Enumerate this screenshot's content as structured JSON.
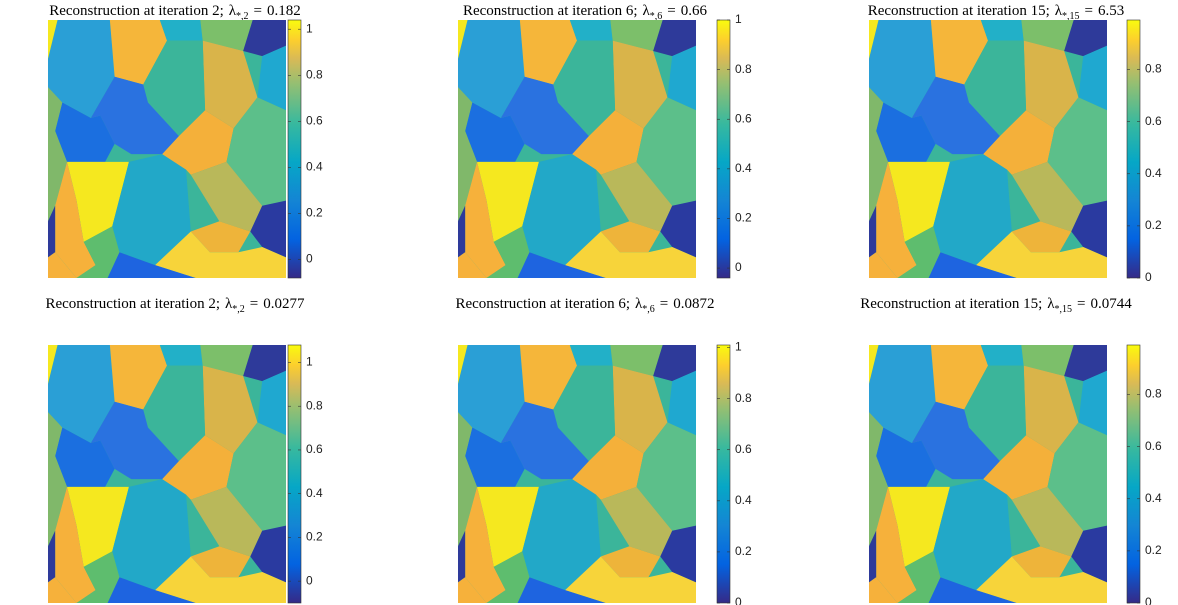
{
  "chart_data": [
    {
      "type": "heatmap",
      "title": "Reconstruction at iteration 2;",
      "lambda": {
        "symbol": "λ",
        "subscript": "*,2",
        "relation": "=",
        "value": 0.182
      },
      "colormap": "parula",
      "clim": [
        -0.08,
        1.04
      ],
      "cticks": [
        0,
        0.2,
        0.4,
        0.6,
        0.8,
        1
      ]
    },
    {
      "type": "heatmap",
      "title": "Reconstruction at iteration 6;",
      "lambda": {
        "symbol": "λ",
        "subscript": "*,6",
        "relation": "=",
        "value": 0.66
      },
      "colormap": "parula",
      "clim": [
        -0.04,
        1
      ],
      "cticks": [
        0,
        0.2,
        0.4,
        0.6,
        0.8,
        1
      ]
    },
    {
      "type": "heatmap",
      "title": "Reconstruction at iteration 15;",
      "lambda": {
        "symbol": "λ",
        "subscript": "*,15",
        "relation": "=",
        "value": 6.53
      },
      "colormap": "parula",
      "clim": [
        0,
        0.99
      ],
      "cticks": [
        0,
        0.2,
        0.4,
        0.6,
        0.8
      ]
    },
    {
      "type": "heatmap",
      "title": "Reconstruction at iteration 2;",
      "lambda": {
        "symbol": "λ",
        "subscript": "*,2",
        "relation": "=",
        "value": 0.0277
      },
      "colormap": "parula",
      "clim": [
        -0.1,
        1.08
      ],
      "cticks": [
        0,
        0.2,
        0.4,
        0.6,
        0.8,
        1
      ]
    },
    {
      "type": "heatmap",
      "title": "Reconstruction at iteration 6;",
      "lambda": {
        "symbol": "λ",
        "subscript": "*,6",
        "relation": "=",
        "value": 0.0872
      },
      "colormap": "parula",
      "clim": [
        0,
        1.01
      ],
      "cticks": [
        0,
        0.2,
        0.4,
        0.6,
        0.8,
        1
      ]
    },
    {
      "type": "heatmap",
      "title": "Reconstruction at iteration 15;",
      "lambda": {
        "symbol": "λ",
        "subscript": "*,15",
        "relation": "=",
        "value": 0.0744
      },
      "colormap": "parula",
      "clim": [
        0,
        0.99
      ],
      "cticks": [
        0,
        0.2,
        0.4,
        0.6,
        0.8
      ]
    }
  ]
}
